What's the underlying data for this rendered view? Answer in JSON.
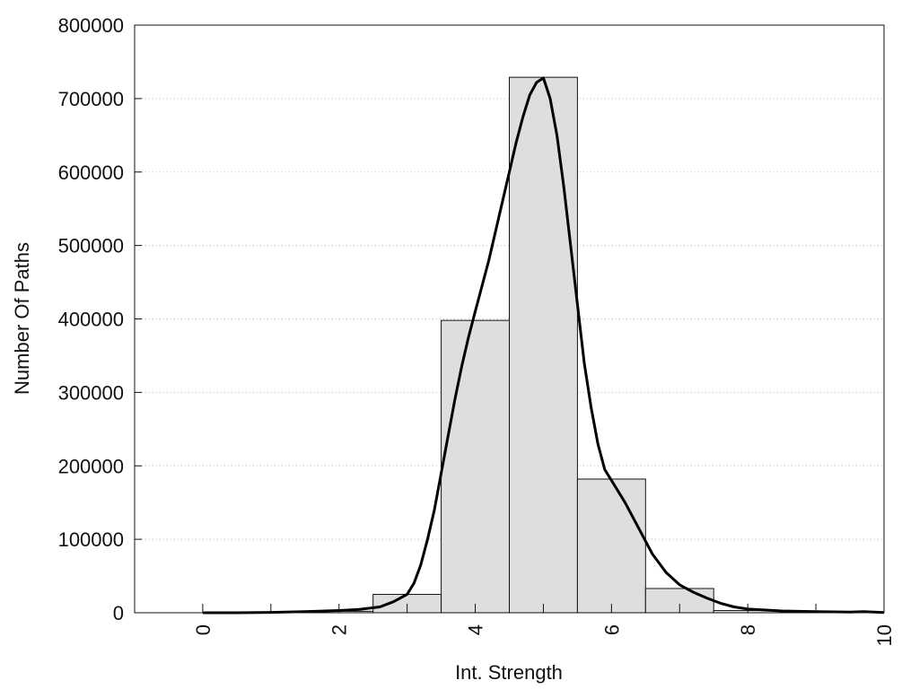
{
  "chart_data": {
    "type": "bar",
    "title": "",
    "xlabel": "Int. Strength",
    "ylabel": "Number Of Paths",
    "xlim": [
      -1,
      10
    ],
    "ylim": [
      0,
      800000
    ],
    "x_ticks": [
      0,
      2,
      4,
      6,
      8,
      10
    ],
    "y_ticks": [
      0,
      100000,
      200000,
      300000,
      400000,
      500000,
      600000,
      700000,
      800000
    ],
    "grid": "horizontal dotted",
    "bar_width": 1,
    "bars": [
      {
        "x": 0,
        "value": 0
      },
      {
        "x": 1,
        "value": 0
      },
      {
        "x": 2,
        "value": 2000
      },
      {
        "x": 3,
        "value": 25000
      },
      {
        "x": 4,
        "value": 398000
      },
      {
        "x": 5,
        "value": 729000
      },
      {
        "x": 6,
        "value": 182000
      },
      {
        "x": 7,
        "value": 33000
      },
      {
        "x": 8,
        "value": 3000
      },
      {
        "x": 9,
        "value": 0
      }
    ],
    "curve": {
      "type": "line",
      "points": [
        [
          0,
          0
        ],
        [
          0.5,
          0
        ],
        [
          1,
          500
        ],
        [
          1.5,
          1500
        ],
        [
          2,
          3000
        ],
        [
          2.3,
          4500
        ],
        [
          2.6,
          8000
        ],
        [
          2.8,
          15000
        ],
        [
          3,
          25000
        ],
        [
          3.1,
          40000
        ],
        [
          3.2,
          65000
        ],
        [
          3.3,
          100000
        ],
        [
          3.4,
          140000
        ],
        [
          3.5,
          190000
        ],
        [
          3.6,
          240000
        ],
        [
          3.7,
          290000
        ],
        [
          3.8,
          335000
        ],
        [
          3.9,
          375000
        ],
        [
          4,
          410000
        ],
        [
          4.1,
          445000
        ],
        [
          4.2,
          480000
        ],
        [
          4.3,
          520000
        ],
        [
          4.4,
          560000
        ],
        [
          4.5,
          600000
        ],
        [
          4.6,
          640000
        ],
        [
          4.7,
          675000
        ],
        [
          4.8,
          705000
        ],
        [
          4.9,
          722000
        ],
        [
          5,
          728000
        ],
        [
          5.1,
          700000
        ],
        [
          5.2,
          650000
        ],
        [
          5.3,
          580000
        ],
        [
          5.4,
          500000
        ],
        [
          5.5,
          420000
        ],
        [
          5.6,
          340000
        ],
        [
          5.7,
          280000
        ],
        [
          5.8,
          230000
        ],
        [
          5.9,
          195000
        ],
        [
          6,
          180000
        ],
        [
          6.2,
          150000
        ],
        [
          6.4,
          115000
        ],
        [
          6.6,
          80000
        ],
        [
          6.8,
          55000
        ],
        [
          7,
          38000
        ],
        [
          7.2,
          28000
        ],
        [
          7.4,
          20000
        ],
        [
          7.6,
          13000
        ],
        [
          7.8,
          8000
        ],
        [
          8,
          5000
        ],
        [
          8.5,
          2500
        ],
        [
          9,
          1500
        ],
        [
          9.5,
          800
        ],
        [
          9.7,
          1500
        ],
        [
          10,
          200
        ]
      ]
    },
    "colors": {
      "bar_fill": "#dedede",
      "bar_stroke": "#111111",
      "curve": "#000000",
      "grid": "#bbbbbb",
      "axis": "#111111"
    }
  }
}
